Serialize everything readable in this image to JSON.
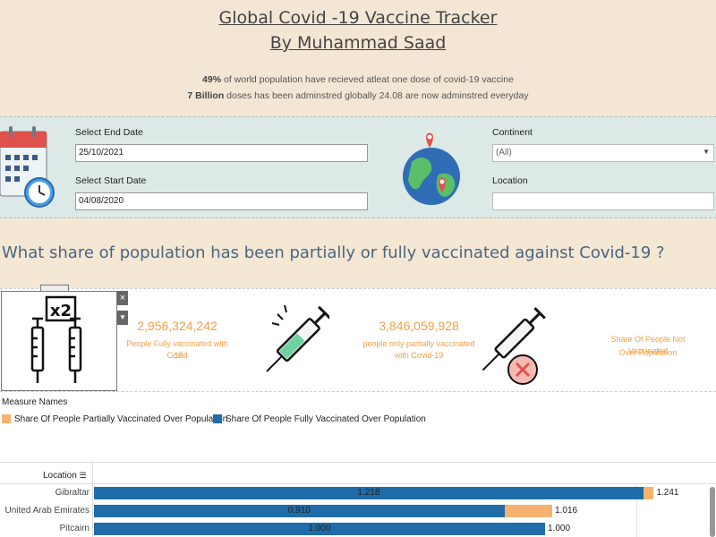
{
  "header": {
    "title": "Global Covid -19 Vaccine Tracker",
    "author": "By Muhammad Saad",
    "line1_bold": "49%",
    "line1_rest": " of world population have recieved atleat one dose of covid-19 vaccine",
    "line2_bold": "7 Billion",
    "line2_rest": " doses has been adminstred globally 24.08 are now adminstred everyday"
  },
  "filters": {
    "end_date_label": "Select End Date",
    "end_date_value": "25/10/2021",
    "start_date_label": "Select Start Date",
    "start_date_value": "04/08/2020",
    "continent_label": "Continent",
    "continent_value": "(All)",
    "location_label": "Location",
    "location_value": ""
  },
  "question": "What share of population has been partially or fully vaccinated against Covid-19 ?",
  "kpis": {
    "fully_value": "2,956,324,242",
    "fully_label_1": "People Fully vaccinated with Covid",
    "fully_label_2": "-19",
    "partial_value": "3,846,059,928",
    "partial_label_1": "people only partially vaccinated",
    "partial_label_2": "with Covid-19",
    "not_label_1": "Share Of People Not Vaccinated",
    "not_label_2": "Over Population"
  },
  "legend": {
    "title": "Measure Names",
    "partial": "Share Of People Partially Vaccinated Over Population",
    "fully": "Share Of People Fully Vaccinated Over Population",
    "colors": {
      "partial": "#f7b26f",
      "fully": "#1f6ca8"
    }
  },
  "chart_data": {
    "type": "bar",
    "column_header": "Location",
    "categories": [
      "Gibraltar",
      "United Arab Emirates",
      "Pitcairn"
    ],
    "series": [
      {
        "name": "Share Of People Fully Vaccinated Over Population",
        "values": [
          1.218,
          0.91,
          1.0
        ]
      },
      {
        "name": "Share Of People Partially Vaccinated Over Population",
        "values": [
          0.023,
          0.106,
          0.0
        ]
      }
    ],
    "totals": [
      1.241,
      1.016,
      1.0
    ],
    "fully_labels": [
      "1.218",
      "0.910",
      "1.000"
    ],
    "total_labels": [
      "1.241",
      "1.016",
      "1.000"
    ],
    "xlim": [
      0,
      1.3
    ]
  }
}
